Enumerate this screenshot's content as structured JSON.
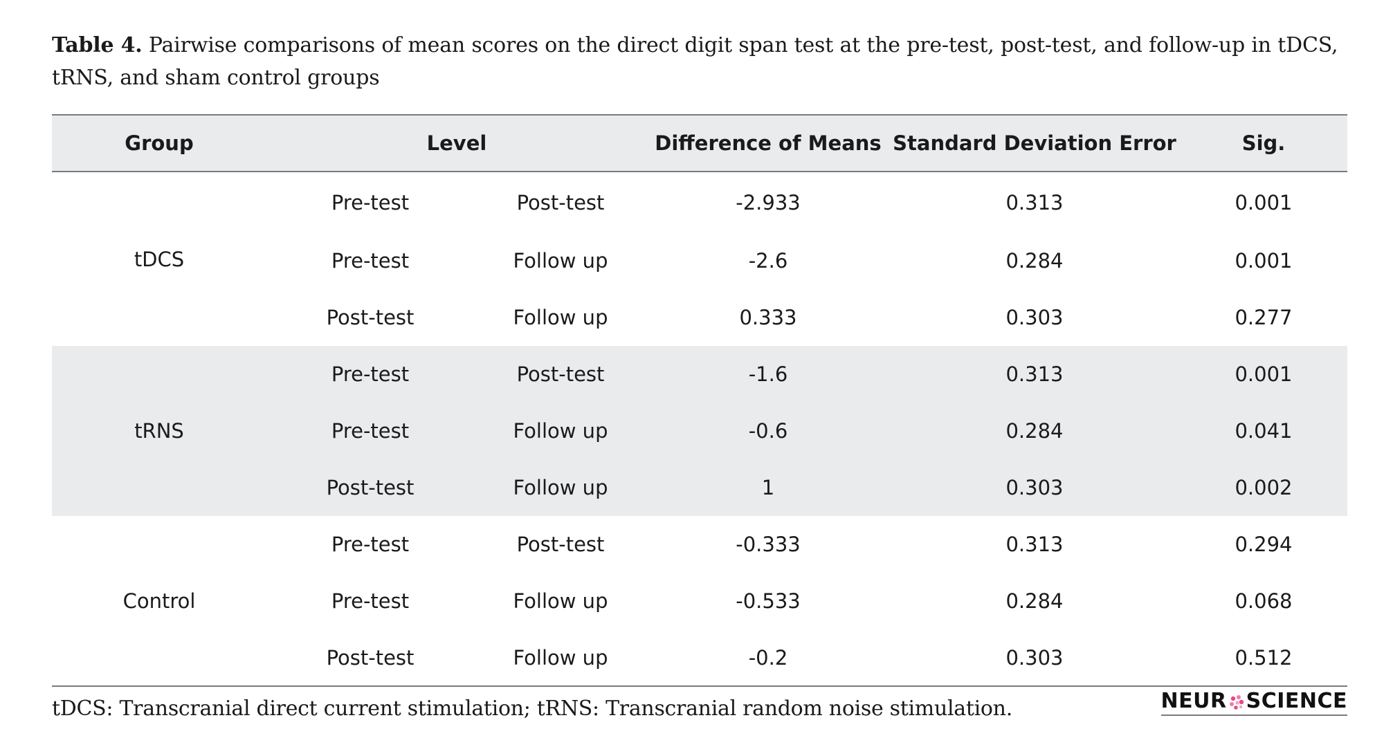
{
  "caption": {
    "label": "Table 4.",
    "text": " Pairwise comparisons of mean scores on the direct digit span test at the pre-test, post-test, and follow-up in tDCS, tRNS, and sham control groups"
  },
  "table": {
    "headers": {
      "group": "Group",
      "level": "Level",
      "difference": "Difference of Means",
      "sde": "Standard Deviation Error",
      "sig": "Sig."
    },
    "groups": [
      {
        "name": "tDCS",
        "rows": [
          {
            "level_a": "Pre-test",
            "level_b": "Post-test",
            "difference": "-2.933",
            "sde": "0.313",
            "sig": "0.001"
          },
          {
            "level_a": "Pre-test",
            "level_b": "Follow up",
            "difference": "-2.6",
            "sde": "0.284",
            "sig": "0.001"
          },
          {
            "level_a": "Post-test",
            "level_b": "Follow up",
            "difference": "0.333",
            "sde": "0.303",
            "sig": "0.277"
          }
        ]
      },
      {
        "name": "tRNS",
        "rows": [
          {
            "level_a": "Pre-test",
            "level_b": "Post-test",
            "difference": "-1.6",
            "sde": "0.313",
            "sig": "0.001"
          },
          {
            "level_a": "Pre-test",
            "level_b": "Follow up",
            "difference": "-0.6",
            "sde": "0.284",
            "sig": "0.041"
          },
          {
            "level_a": "Post-test",
            "level_b": "Follow up",
            "difference": "1",
            "sde": "0.303",
            "sig": "0.002"
          }
        ]
      },
      {
        "name": "Control",
        "rows": [
          {
            "level_a": "Pre-test",
            "level_b": "Post-test",
            "difference": "-0.333",
            "sde": "0.313",
            "sig": "0.294"
          },
          {
            "level_a": "Pre-test",
            "level_b": "Follow up",
            "difference": "-0.533",
            "sde": "0.284",
            "sig": "0.068"
          },
          {
            "level_a": "Post-test",
            "level_b": "Follow up",
            "difference": "-0.2",
            "sde": "0.303",
            "sig": "0.512"
          }
        ]
      }
    ]
  },
  "footnote": "tDCS: Transcranial direct current stimulation; tRNS: Transcranial random noise stimulation.",
  "logo": {
    "text_left": "NEUR",
    "text_right": "SCIENCE",
    "icon": "brain-icon",
    "accent_color": "#e8488a"
  }
}
